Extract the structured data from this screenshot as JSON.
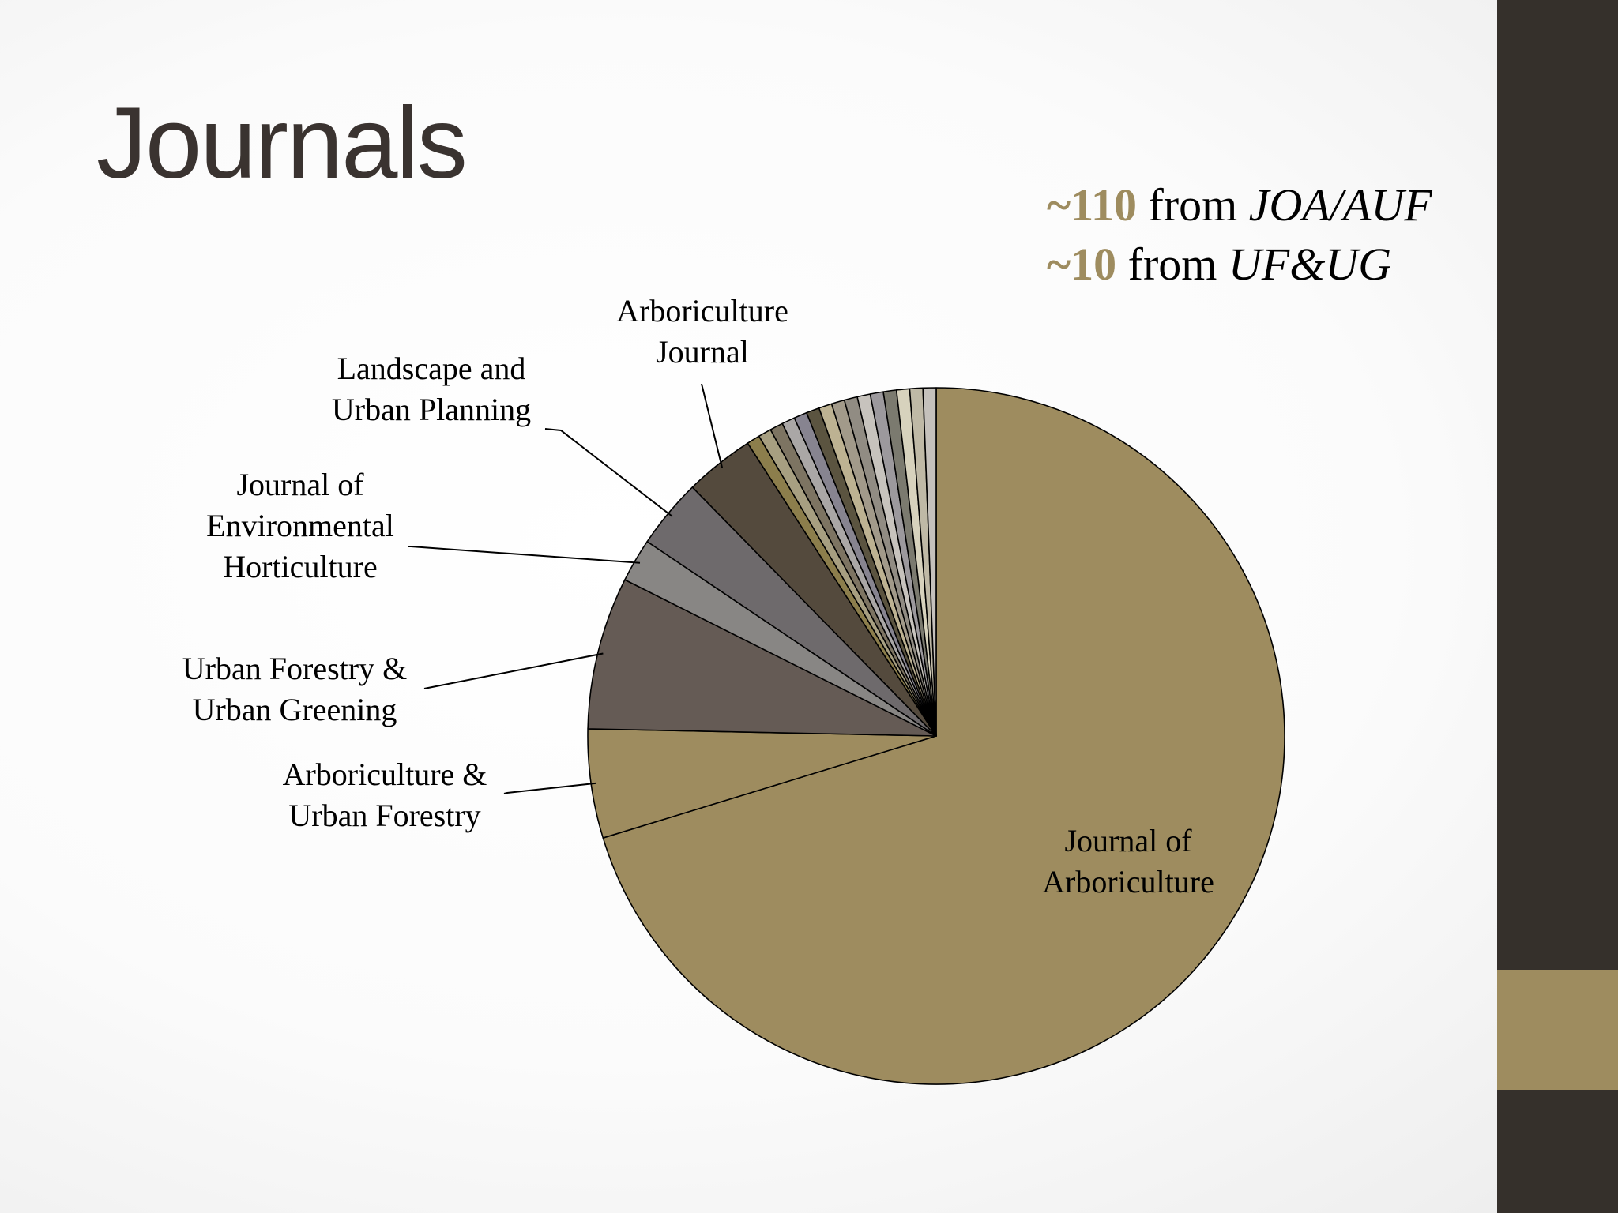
{
  "slide": {
    "title": "Journals",
    "colors": {
      "sidebar": "#35302b",
      "accent": "#9e8c5f",
      "title": "#3a3330"
    }
  },
  "callout": [
    {
      "number": "~110",
      "word": "from",
      "source": "JOA/AUF"
    },
    {
      "number": "~10",
      "word": "from",
      "source": "UF&UG"
    }
  ],
  "chart_data": {
    "type": "pie",
    "title": "",
    "start_angle_deg": 90,
    "direction": "clockwise",
    "slices": [
      {
        "name": "Journal of Arboriculture",
        "label_lines": [
          "Journal of",
          "Arboriculture"
        ],
        "value": 69.5,
        "color": "#9e8c5f"
      },
      {
        "name": "Arboriculture & Urban Forestry",
        "label_lines": [
          "Arboriculture &",
          "Urban Forestry"
        ],
        "value": 5.0,
        "color": "#9e8c5f"
      },
      {
        "name": "Urban Forestry & Urban Greening",
        "label_lines": [
          "Urban Forestry &",
          "Urban Greening"
        ],
        "value": 7.0,
        "color": "#655b55"
      },
      {
        "name": "Journal of Environmental Horticulture",
        "label_lines": [
          "Journal of",
          "Environmental",
          "Horticulture"
        ],
        "value": 2.0,
        "color": "#888684"
      },
      {
        "name": "Landscape and Urban Planning",
        "label_lines": [
          "Landscape and",
          "Urban Planning"
        ],
        "value": 3.2,
        "color": "#6e6a6c"
      },
      {
        "name": "Arboriculture Journal",
        "label_lines": [
          "Arboriculture",
          "Journal"
        ],
        "value": 3.2,
        "color": "#544a3d"
      },
      {
        "name": "",
        "value": 0.6,
        "color": "#8c7e4c"
      },
      {
        "name": "",
        "value": 0.6,
        "color": "#a79f81"
      },
      {
        "name": "",
        "value": 0.6,
        "color": "#7d7462"
      },
      {
        "name": "",
        "value": 0.6,
        "color": "#aaa7a6"
      },
      {
        "name": "",
        "value": 0.6,
        "color": "#878490"
      },
      {
        "name": "",
        "value": 0.6,
        "color": "#5b5440"
      },
      {
        "name": "",
        "value": 0.6,
        "color": "#bdb292"
      },
      {
        "name": "",
        "value": 0.6,
        "color": "#a29a8a"
      },
      {
        "name": "",
        "value": 0.6,
        "color": "#918c83"
      },
      {
        "name": "",
        "value": 0.6,
        "color": "#c7c3bd"
      },
      {
        "name": "",
        "value": 0.6,
        "color": "#9c999d"
      },
      {
        "name": "",
        "value": 0.6,
        "color": "#7b7a6f"
      },
      {
        "name": "",
        "value": 0.6,
        "color": "#d7d2bd"
      },
      {
        "name": "",
        "value": 0.6,
        "color": "#bfb9a6"
      },
      {
        "name": "",
        "value": 0.6,
        "color": "#c5c1bc"
      }
    ]
  }
}
